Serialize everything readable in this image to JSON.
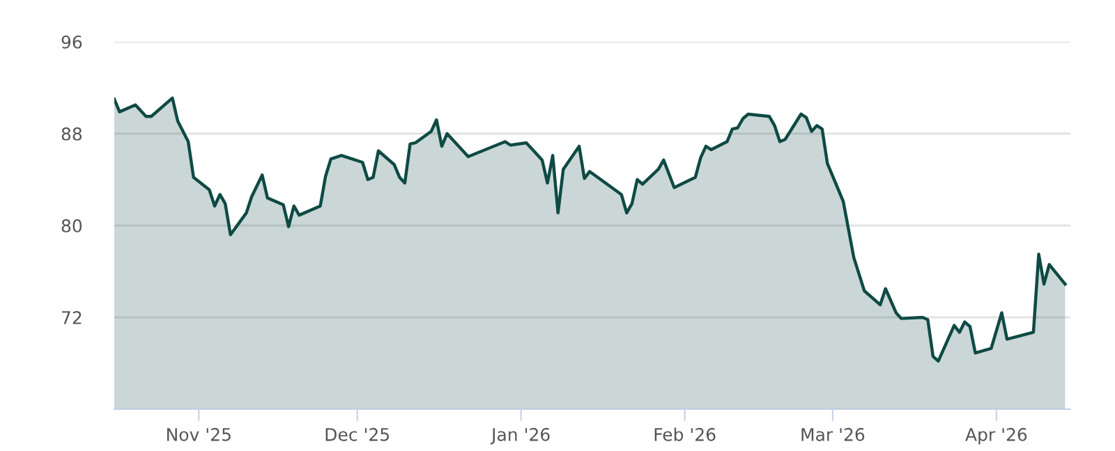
{
  "chart_data": {
    "type": "area",
    "x": [
      "2025-10-16",
      "2025-10-17",
      "2025-10-20",
      "2025-10-22",
      "2025-10-23",
      "2025-10-27",
      "2025-10-28",
      "2025-10-30",
      "2025-10-31",
      "2025-11-03",
      "2025-11-04",
      "2025-11-05",
      "2025-11-06",
      "2025-11-07",
      "2025-11-10",
      "2025-11-11",
      "2025-11-13",
      "2025-11-14",
      "2025-11-17",
      "2025-11-18",
      "2025-11-19",
      "2025-11-20",
      "2025-11-24",
      "2025-11-25",
      "2025-11-26",
      "2025-11-28",
      "2025-12-02",
      "2025-12-03",
      "2025-12-04",
      "2025-12-05",
      "2025-12-08",
      "2025-12-09",
      "2025-12-10",
      "2025-12-11",
      "2025-12-12",
      "2025-12-15",
      "2025-12-16",
      "2025-12-17",
      "2025-12-18",
      "2025-12-22",
      "2025-12-29",
      "2025-12-30",
      "2026-01-02",
      "2026-01-05",
      "2026-01-06",
      "2026-01-07",
      "2026-01-08",
      "2026-01-09",
      "2026-01-12",
      "2026-01-13",
      "2026-01-14",
      "2026-01-20",
      "2026-01-21",
      "2026-01-22",
      "2026-01-23",
      "2026-01-24",
      "2026-01-27",
      "2026-01-28",
      "2026-01-30",
      "2026-02-03",
      "2026-02-04",
      "2026-02-05",
      "2026-02-06",
      "2026-02-09",
      "2026-02-10",
      "2026-02-11",
      "2026-02-12",
      "2026-02-13",
      "2026-02-17",
      "2026-02-18",
      "2026-02-19",
      "2026-02-20",
      "2026-02-23",
      "2026-02-24",
      "2026-02-25",
      "2026-02-26",
      "2026-02-27",
      "2026-02-28",
      "2026-03-03",
      "2026-03-05",
      "2026-03-07",
      "2026-03-10",
      "2026-03-11",
      "2026-03-13",
      "2026-03-14",
      "2026-03-18",
      "2026-03-19",
      "2026-03-20",
      "2026-03-21",
      "2026-03-24",
      "2026-03-25",
      "2026-03-26",
      "2026-03-27",
      "2026-03-28",
      "2026-03-31",
      "2026-04-02",
      "2026-04-03",
      "2026-04-08",
      "2026-04-09",
      "2026-04-10",
      "2026-04-11",
      "2026-04-14"
    ],
    "series": [
      {
        "color": "#0f4a44",
        "values": [
          91.0,
          89.9,
          90.5,
          89.5,
          89.5,
          91.1,
          89.1,
          87.3,
          84.2,
          83.1,
          81.7,
          82.7,
          81.9,
          79.2,
          81.1,
          82.5,
          84.4,
          82.4,
          81.8,
          79.9,
          81.7,
          80.9,
          81.7,
          84.3,
          85.8,
          86.1,
          85.5,
          84.0,
          84.2,
          86.5,
          85.3,
          84.2,
          83.7,
          87.1,
          87.2,
          88.2,
          89.2,
          86.9,
          88.0,
          86.0,
          87.3,
          87.0,
          87.2,
          85.7,
          83.7,
          86.1,
          81.1,
          84.9,
          86.9,
          84.1,
          84.7,
          82.7,
          81.1,
          81.9,
          84.0,
          83.6,
          84.9,
          85.7,
          83.3,
          84.2,
          85.9,
          86.9,
          86.6,
          87.3,
          88.4,
          88.5,
          89.3,
          89.7,
          89.5,
          88.7,
          87.3,
          87.5,
          89.7,
          89.4,
          88.2,
          88.7,
          88.4,
          85.4,
          82.1,
          77.2,
          74.3,
          73.1,
          74.5,
          72.4,
          71.9,
          72.0,
          71.8,
          68.6,
          68.2,
          71.3,
          70.7,
          71.6,
          71.2,
          68.9,
          69.3,
          72.4,
          70.1,
          70.7,
          77.5,
          74.9,
          76.6,
          74.9
        ]
      }
    ],
    "xlim": [
      "2025-10-16",
      "2026-04-15"
    ],
    "xticks": [
      {
        "value": "2025-11-01",
        "label": "Nov '25"
      },
      {
        "value": "2025-12-01",
        "label": "Dec '25"
      },
      {
        "value": "2026-01-01",
        "label": "Jan '26"
      },
      {
        "value": "2026-02-01",
        "label": "Feb '26"
      },
      {
        "value": "2026-03-01",
        "label": "Mar '26"
      },
      {
        "value": "2026-04-01",
        "label": "Apr '26"
      }
    ],
    "ylim": [
      64,
      96
    ],
    "yticks": [
      {
        "value": 64,
        "label": null
      },
      72,
      80,
      88,
      96
    ],
    "grid": "y"
  }
}
